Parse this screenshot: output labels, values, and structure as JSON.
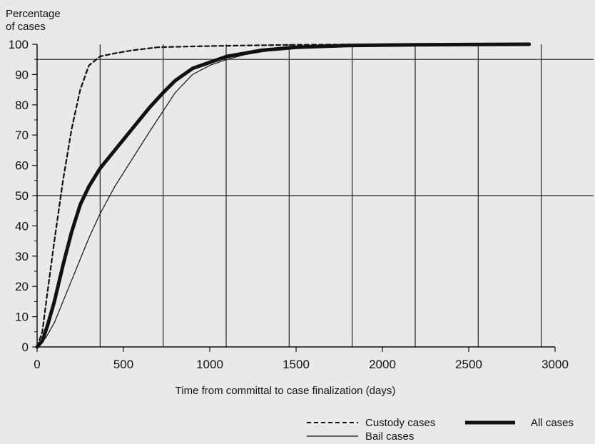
{
  "chart_data": {
    "type": "line",
    "ylabel_lines": [
      "Percentage",
      "of cases"
    ],
    "xlabel": "Time from committal to case finalization (days)",
    "xlim": [
      0,
      3000
    ],
    "ylim": [
      0,
      100
    ],
    "x_ticks": [
      0,
      500,
      1000,
      1500,
      2000,
      2500,
      3000
    ],
    "y_ticks": [
      0,
      10,
      20,
      30,
      40,
      50,
      60,
      70,
      80,
      90,
      100
    ],
    "x_tick_labels": [
      "0",
      "500",
      "1000",
      "1500",
      "2000",
      "2500",
      "3000"
    ],
    "y_tick_labels": [
      "0",
      "10",
      "20",
      "30",
      "40",
      "50",
      "60",
      "70",
      "80",
      "90",
      "100"
    ],
    "reference_lines_y": [
      50,
      95
    ],
    "reference_lines_x": [
      365,
      730,
      1095,
      1460,
      1825,
      2190,
      2555,
      2920
    ],
    "grid": false,
    "legend_position": "bottom-right",
    "series": [
      {
        "name": "Custody cases",
        "style": "dashed",
        "color": "#111111",
        "x": [
          0,
          30,
          60,
          100,
          150,
          200,
          250,
          300,
          365,
          450,
          550,
          700,
          900,
          1200,
          1500,
          2000,
          2500,
          2850
        ],
        "y": [
          0,
          5,
          18,
          35,
          55,
          72,
          85,
          93,
          96,
          97,
          98,
          99,
          99.3,
          99.6,
          99.8,
          100,
          100,
          100
        ]
      },
      {
        "name": "All cases",
        "style": "thick",
        "color": "#111111",
        "x": [
          0,
          30,
          60,
          100,
          150,
          200,
          250,
          300,
          365,
          450,
          550,
          650,
          730,
          800,
          900,
          1000,
          1100,
          1200,
          1300,
          1400,
          1500,
          1800,
          2200,
          2500,
          2850
        ],
        "y": [
          0,
          2,
          7,
          15,
          27,
          38,
          47,
          53,
          59,
          65,
          72,
          79,
          84,
          88,
          92,
          94,
          96,
          97,
          98,
          98.5,
          99,
          99.6,
          99.8,
          99.9,
          100
        ]
      },
      {
        "name": "Bail cases",
        "style": "thin",
        "color": "#111111",
        "x": [
          0,
          50,
          100,
          150,
          200,
          250,
          300,
          365,
          450,
          550,
          650,
          730,
          800,
          900,
          1000,
          1100,
          1200,
          1300,
          1400,
          1500,
          1800,
          2200,
          2500,
          2850
        ],
        "y": [
          0,
          3,
          8,
          15,
          22,
          29,
          36,
          44,
          53,
          62,
          71,
          78,
          84,
          90,
          93,
          95,
          96.5,
          97.5,
          98.3,
          98.8,
          99.5,
          99.8,
          99.9,
          100
        ]
      }
    ]
  }
}
